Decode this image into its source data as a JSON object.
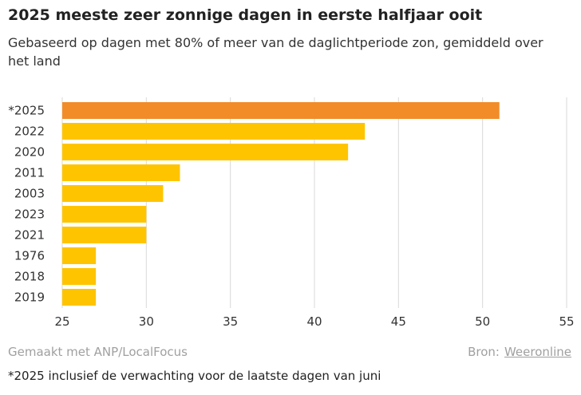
{
  "title": "2025 meeste zeer zonnige dagen in eerste halfjaar ooit",
  "subtitle": "Gebaseerd op dagen met 80% of meer van de daglichtperiode zon, gemiddeld over het land",
  "chart_data": {
    "type": "bar",
    "orientation": "horizontal",
    "categories": [
      "*2025",
      "2022",
      "2020",
      "2011",
      "2003",
      "2023",
      "2021",
      "1976",
      "2018",
      "2019"
    ],
    "values": [
      51,
      43,
      42,
      32,
      31,
      30,
      30,
      27,
      27,
      27
    ],
    "highlight_index": 0,
    "xlim": [
      25,
      55
    ],
    "xticks": [
      25,
      30,
      35,
      40,
      45,
      50,
      55
    ],
    "grid": true,
    "colors": {
      "highlight": "#f28c28",
      "default": "#ffc400",
      "grid": "#d9d9d9"
    }
  },
  "footer": {
    "made_with": "Gemaakt met ANP/LocalFocus",
    "source_label": "Bron:",
    "source_name": "Weeronline"
  },
  "footnote": "*2025 inclusief de verwachting voor de laatste dagen van juni"
}
